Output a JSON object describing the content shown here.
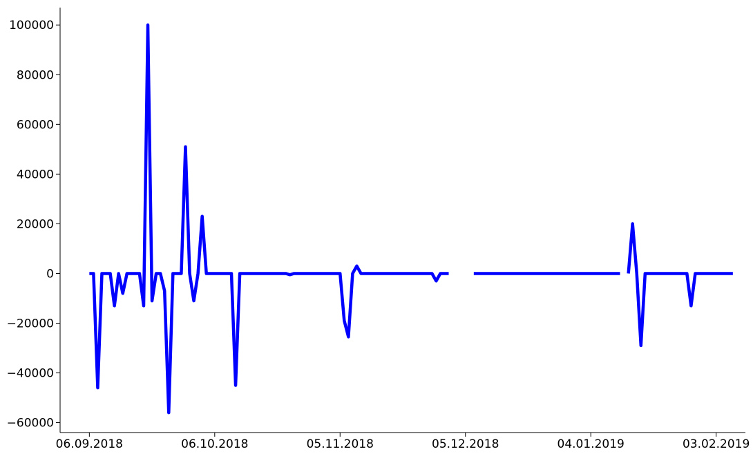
{
  "chart_data": {
    "type": "line",
    "title": "",
    "xlabel": "",
    "ylabel": "",
    "x_type": "date",
    "xlim": [
      "2018-08-30",
      "2019-02-10"
    ],
    "ylim": [
      -64000,
      107000
    ],
    "x_ticks": [
      {
        "date": "2018-09-06",
        "label": "06.09.2018"
      },
      {
        "date": "2018-10-06",
        "label": "06.10.2018"
      },
      {
        "date": "2018-11-05",
        "label": "05.11.2018"
      },
      {
        "date": "2018-12-05",
        "label": "05.12.2018"
      },
      {
        "date": "2019-01-04",
        "label": "04.01.2019"
      },
      {
        "date": "2019-02-03",
        "label": "03.02.2019"
      }
    ],
    "y_ticks": [
      {
        "value": 100000,
        "label": "100000"
      },
      {
        "value": 80000,
        "label": "80000"
      },
      {
        "value": 60000,
        "label": "60000"
      },
      {
        "value": 40000,
        "label": "40000"
      },
      {
        "value": 20000,
        "label": "20000"
      },
      {
        "value": 0,
        "label": "0"
      },
      {
        "value": -20000,
        "label": "−20000"
      },
      {
        "value": -40000,
        "label": "−40000"
      },
      {
        "value": -60000,
        "label": "−60000"
      }
    ],
    "grid": false,
    "legend": "none",
    "series": [
      {
        "color": "#0000ff",
        "segments": [
          [
            [
              "2018-09-06",
              0
            ],
            [
              "2018-09-07",
              0
            ],
            [
              "2018-09-08",
              -46000
            ],
            [
              "2018-09-09",
              0
            ],
            [
              "2018-09-11",
              0
            ],
            [
              "2018-09-12",
              -13000
            ],
            [
              "2018-09-13",
              0
            ],
            [
              "2018-09-14",
              -8000
            ],
            [
              "2018-09-15",
              0
            ],
            [
              "2018-09-18",
              0
            ],
            [
              "2018-09-19",
              -13000
            ],
            [
              "2018-09-20",
              100000
            ],
            [
              "2018-09-21",
              -11000
            ],
            [
              "2018-09-22",
              0
            ],
            [
              "2018-09-23",
              0
            ],
            [
              "2018-09-24",
              -7000
            ],
            [
              "2018-09-25",
              -56000
            ],
            [
              "2018-09-26",
              0
            ],
            [
              "2018-09-28",
              0
            ],
            [
              "2018-09-29",
              51000
            ],
            [
              "2018-09-30",
              0
            ],
            [
              "2018-10-01",
              -11000
            ],
            [
              "2018-10-02",
              0
            ],
            [
              "2018-10-03",
              23000
            ],
            [
              "2018-10-04",
              0
            ],
            [
              "2018-10-10",
              0
            ],
            [
              "2018-10-11",
              -45000
            ],
            [
              "2018-10-12",
              0
            ],
            [
              "2018-10-23",
              0
            ],
            [
              "2018-10-24",
              -500
            ],
            [
              "2018-10-25",
              0
            ],
            [
              "2018-11-05",
              0
            ],
            [
              "2018-11-06",
              -19000
            ],
            [
              "2018-11-07",
              -25500
            ],
            [
              "2018-11-08",
              0
            ],
            [
              "2018-11-09",
              3000
            ],
            [
              "2018-11-10",
              0
            ],
            [
              "2018-11-27",
              0
            ],
            [
              "2018-11-28",
              -3000
            ],
            [
              "2018-11-29",
              0
            ],
            [
              "2018-12-01",
              0
            ]
          ],
          [
            [
              "2018-12-07",
              0
            ],
            [
              "2019-01-11",
              0
            ]
          ],
          [
            [
              "2019-01-13",
              0
            ],
            [
              "2019-01-14",
              20000
            ],
            [
              "2019-01-15",
              0
            ],
            [
              "2019-01-16",
              -29000
            ],
            [
              "2019-01-17",
              0
            ],
            [
              "2019-01-27",
              0
            ],
            [
              "2019-01-28",
              -13000
            ],
            [
              "2019-01-29",
              0
            ],
            [
              "2019-02-07",
              0
            ]
          ]
        ]
      }
    ]
  }
}
